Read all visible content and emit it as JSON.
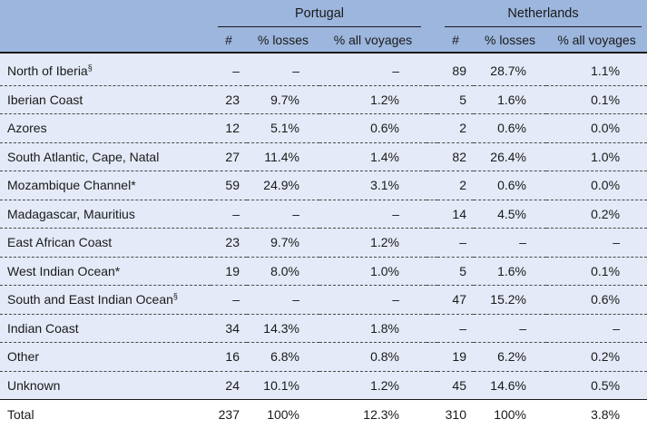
{
  "groups": [
    "Portugal",
    "Netherlands"
  ],
  "subheaders": [
    "#",
    "% losses",
    "% all voyages",
    "#",
    "% losses",
    "% all voyages"
  ],
  "rows": [
    {
      "label": "North of Iberia",
      "sup": "§",
      "pt": [
        "–",
        "–",
        "–"
      ],
      "nl": [
        "89",
        "28.7%",
        "1.1%"
      ]
    },
    {
      "label": "Iberian Coast",
      "sup": "",
      "pt": [
        "23",
        "9.7%",
        "1.2%"
      ],
      "nl": [
        "5",
        "1.6%",
        "0.1%"
      ]
    },
    {
      "label": "Azores",
      "sup": "",
      "pt": [
        "12",
        "5.1%",
        "0.6%"
      ],
      "nl": [
        "2",
        "0.6%",
        "0.0%"
      ]
    },
    {
      "label": "South Atlantic, Cape, Natal",
      "sup": "",
      "pt": [
        "27",
        "11.4%",
        "1.4%"
      ],
      "nl": [
        "82",
        "26.4%",
        "1.0%"
      ]
    },
    {
      "label": "Mozambique Channel*",
      "sup": "",
      "pt": [
        "59",
        "24.9%",
        "3.1%"
      ],
      "nl": [
        "2",
        "0.6%",
        "0.0%"
      ]
    },
    {
      "label": "Madagascar, Mauritius",
      "sup": "",
      "pt": [
        "–",
        "–",
        "–"
      ],
      "nl": [
        "14",
        "4.5%",
        "0.2%"
      ]
    },
    {
      "label": "East African Coast",
      "sup": "",
      "pt": [
        "23",
        "9.7%",
        "1.2%"
      ],
      "nl": [
        "–",
        "–",
        "–"
      ]
    },
    {
      "label": "West Indian Ocean*",
      "sup": "",
      "pt": [
        "19",
        "8.0%",
        "1.0%"
      ],
      "nl": [
        "5",
        "1.6%",
        "0.1%"
      ]
    },
    {
      "label": "South and East Indian Ocean",
      "sup": "§",
      "pt": [
        "–",
        "–",
        "–"
      ],
      "nl": [
        "47",
        "15.2%",
        "0.6%"
      ]
    },
    {
      "label": "Indian Coast",
      "sup": "",
      "pt": [
        "34",
        "14.3%",
        "1.8%"
      ],
      "nl": [
        "–",
        "–",
        "–"
      ]
    },
    {
      "label": "Other",
      "sup": "",
      "pt": [
        "16",
        "6.8%",
        "0.8%"
      ],
      "nl": [
        "19",
        "6.2%",
        "0.2%"
      ]
    },
    {
      "label": "Unknown",
      "sup": "",
      "pt": [
        "24",
        "10.1%",
        "1.2%"
      ],
      "nl": [
        "45",
        "14.6%",
        "0.5%"
      ]
    }
  ],
  "total": {
    "label": "Total",
    "pt": [
      "237",
      "100%",
      "12.3%"
    ],
    "nl": [
      "310",
      "100%",
      "3.8%"
    ]
  }
}
